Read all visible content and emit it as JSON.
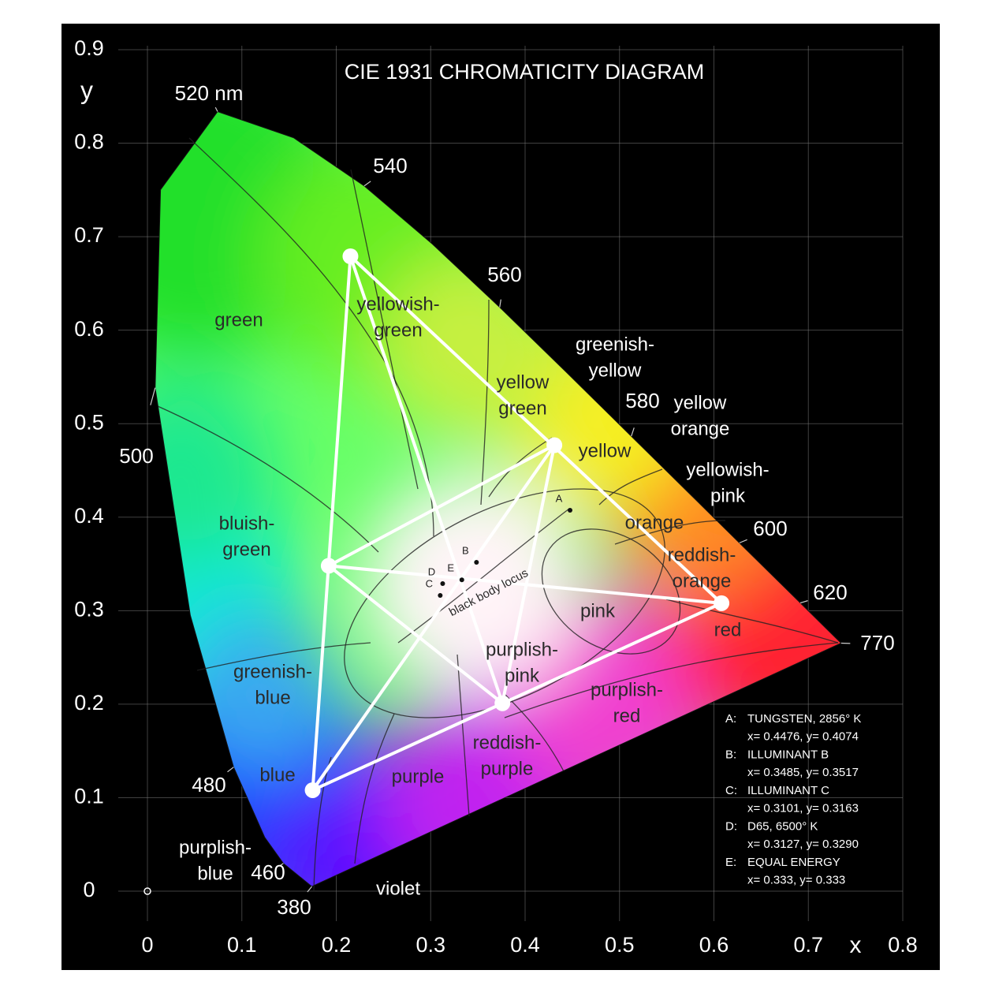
{
  "chart_data": {
    "type": "scatter",
    "title": "CIE 1931 CHROMATICITY DIAGRAM",
    "xlabel": "x",
    "ylabel": "y",
    "xlim": [
      0,
      0.8
    ],
    "ylim": [
      0,
      0.9
    ],
    "xticks": [
      0,
      0.1,
      0.2,
      0.3,
      0.4,
      0.5,
      0.6,
      0.7,
      0.8
    ],
    "yticks": [
      0,
      0.1,
      0.2,
      0.3,
      0.4,
      0.5,
      0.6,
      0.7,
      0.8,
      0.9
    ],
    "grid": true,
    "locus": {
      "x": [
        0.1741,
        0.144,
        0.1241,
        0.0913,
        0.0454,
        0.0082,
        0.0139,
        0.0743,
        0.1547,
        0.2296,
        0.3016,
        0.3731,
        0.4441,
        0.5125,
        0.5752,
        0.627,
        0.6915,
        0.719,
        0.7347
      ],
      "values": [
        0.005,
        0.0297,
        0.0578,
        0.1327,
        0.295,
        0.5384,
        0.7502,
        0.8338,
        0.8059,
        0.7543,
        0.6923,
        0.6245,
        0.5547,
        0.4866,
        0.4242,
        0.3725,
        0.3083,
        0.2809,
        0.2653
      ],
      "labels": [
        "380",
        "460",
        null,
        "480",
        null,
        "500",
        null,
        "520 nm",
        null,
        "540",
        null,
        "560",
        null,
        "580",
        null,
        "600",
        "620",
        null,
        "770"
      ]
    },
    "series": [
      {
        "color": "#ffffff",
        "x": [
          0.215,
          0.608,
          0.175
        ],
        "values": [
          0.679,
          0.308,
          0.108
        ]
      },
      {
        "color": "#ffffff",
        "x": [
          0.431,
          0.192,
          0.376
        ],
        "values": [
          0.477,
          0.348,
          0.201
        ]
      }
    ],
    "annotations": [
      [
        "green"
      ],
      [
        "yellowish-",
        "green"
      ],
      [
        "yellow",
        "green"
      ],
      [
        "greenish-",
        "yellow"
      ],
      [
        "yellow"
      ],
      [
        "yellow",
        "orange"
      ],
      [
        "yellowish-",
        "pink"
      ],
      [
        "orange"
      ],
      [
        "reddish-",
        "orange"
      ],
      [
        "pink"
      ],
      [
        "red"
      ],
      [
        "purplish-",
        "pink"
      ],
      [
        "purplish-",
        "red"
      ],
      [
        "reddish-",
        "purple"
      ],
      [
        "purple"
      ],
      [
        "blue"
      ],
      [
        "greenish-",
        "blue"
      ],
      [
        "bluish-",
        "green"
      ],
      [
        "purplish-",
        "blue"
      ],
      [
        "violet"
      ],
      [
        "black body locus"
      ]
    ],
    "points": [
      {
        "label": "A:",
        "name": "TUNGSTEN, 2856° K",
        "x": 0.4476,
        "y": 0.4074,
        "coords": "x= 0.4476, y= 0.4074"
      },
      {
        "label": "B:",
        "name": "ILLUMINANT B",
        "x": 0.3485,
        "y": 0.3517,
        "coords": "x= 0.3485, y= 0.3517"
      },
      {
        "label": "C:",
        "name": "ILLUMINANT C",
        "x": 0.3101,
        "y": 0.3163,
        "coords": "x= 0.3101, y= 0.3163"
      },
      {
        "label": "D:",
        "name": "D65, 6500° K",
        "x": 0.3127,
        "y": 0.329,
        "coords": "x= 0.3127, y= 0.3290"
      },
      {
        "label": "E:",
        "name": "EQUAL ENERGY",
        "x": 0.333,
        "y": 0.333,
        "coords": "x= 0.333, y= 0.333"
      }
    ]
  }
}
